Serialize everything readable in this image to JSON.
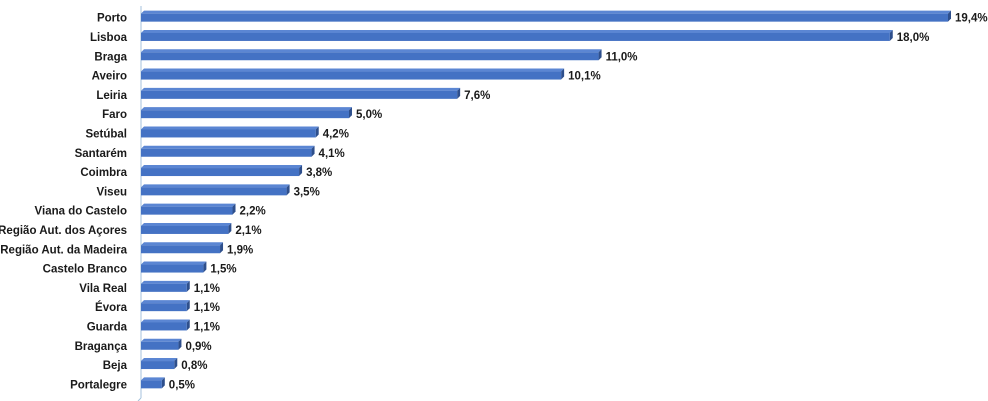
{
  "chart_data": {
    "type": "bar",
    "orientation": "horizontal",
    "title": "",
    "xlabel": "",
    "ylabel": "",
    "categories": [
      "Porto",
      "Lisboa",
      "Braga",
      "Aveiro",
      "Leiria",
      "Faro",
      "Setúbal",
      "Santarém",
      "Coimbra",
      "Viseu",
      "Viana do Castelo",
      "Região Aut. dos Açores",
      "Região Aut. da Madeira",
      "Castelo Branco",
      "Vila Real",
      "Évora",
      "Guarda",
      "Bragança",
      "Beja",
      "Portalegre"
    ],
    "values": [
      19.4,
      18.0,
      11.0,
      10.1,
      7.6,
      5.0,
      4.2,
      4.1,
      3.8,
      3.5,
      2.2,
      2.1,
      1.9,
      1.5,
      1.1,
      1.1,
      1.1,
      0.9,
      0.8,
      0.5
    ],
    "value_labels": [
      "19,4%",
      "18,0%",
      "11,0%",
      "10,1%",
      "7,6%",
      "5,0%",
      "4,2%",
      "4,1%",
      "3,8%",
      "3,5%",
      "2,2%",
      "2,1%",
      "1,9%",
      "1,5%",
      "1,1%",
      "1,1%",
      "1,1%",
      "0,9%",
      "0,8%",
      "0,5%"
    ],
    "xlim": [
      0,
      19.4
    ],
    "grid": false,
    "legend": "none",
    "colors": {
      "bar_front": "#4472C4",
      "bar_top": "#5B86D3",
      "bar_side": "#2E4F8C",
      "axis": "#A6C1DC",
      "text": "#1a1a1a"
    }
  }
}
